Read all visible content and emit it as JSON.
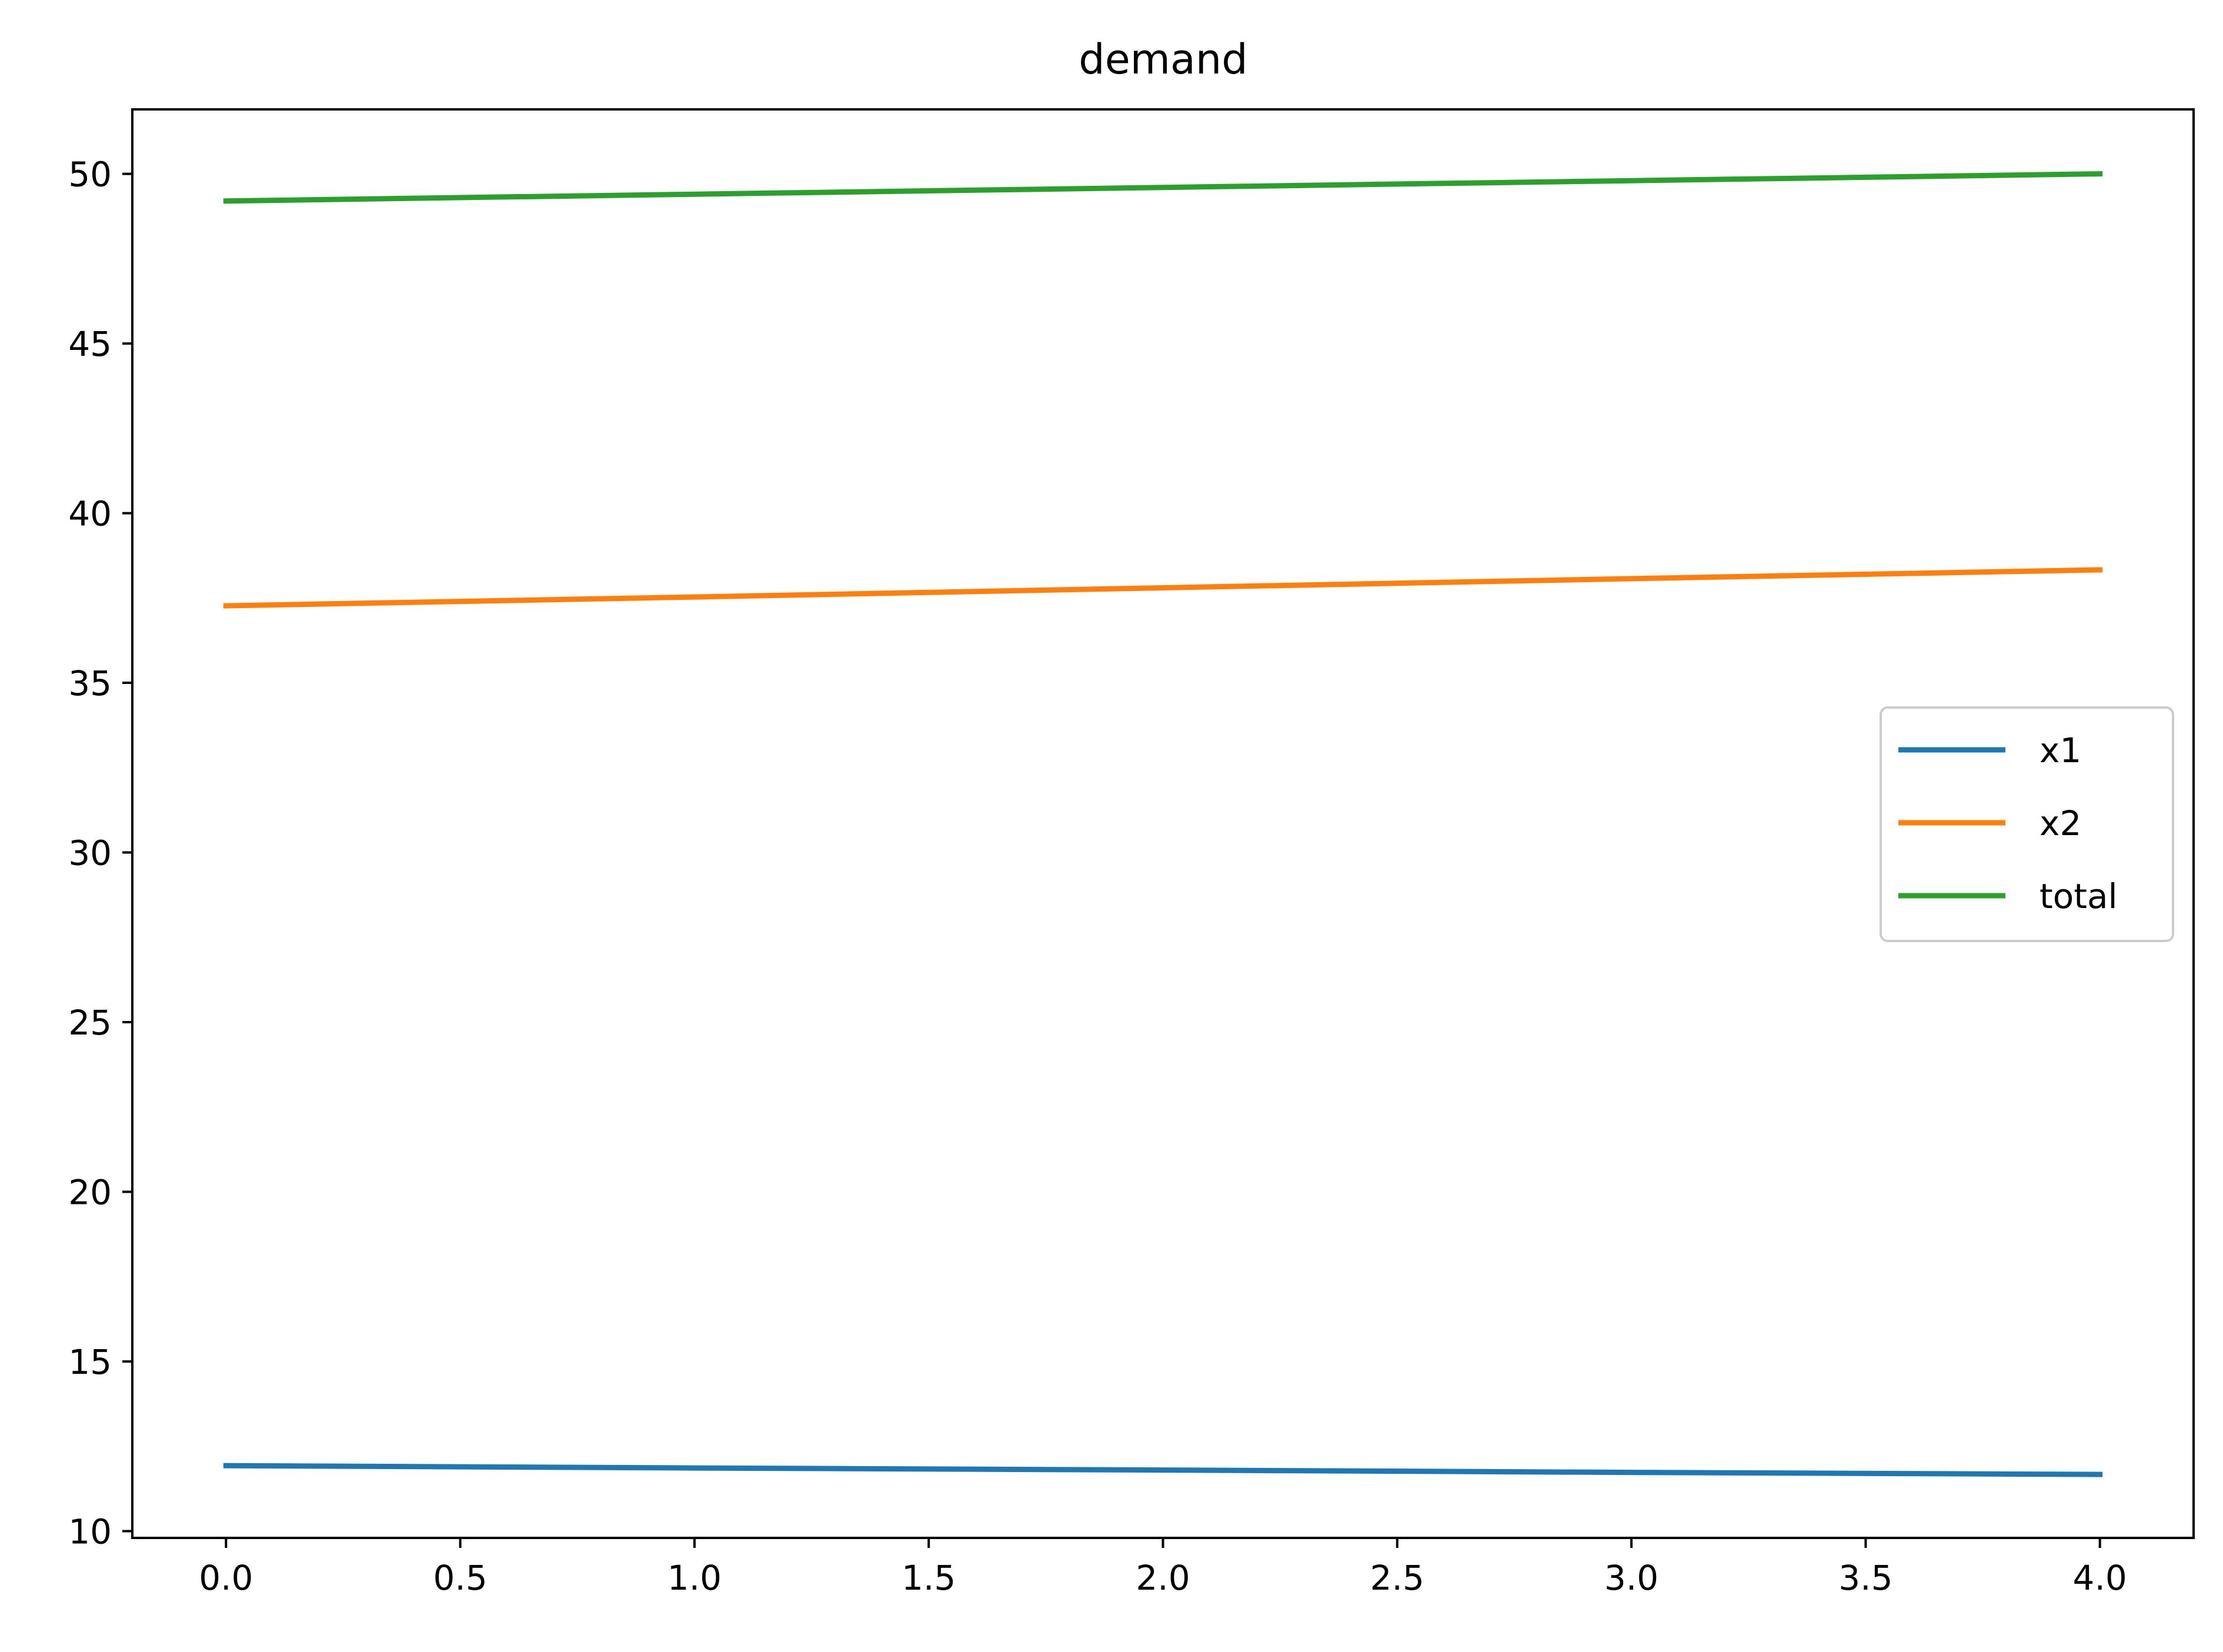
{
  "chart_data": {
    "type": "line",
    "title": "demand",
    "xlabel": "",
    "ylabel": "",
    "xlim": [
      -0.2,
      4.2
    ],
    "ylim": [
      9.8,
      51.9
    ],
    "x_ticks": [
      0.0,
      0.5,
      1.0,
      1.5,
      2.0,
      2.5,
      3.0,
      3.5,
      4.0
    ],
    "x_tick_labels": [
      "0.0",
      "0.5",
      "1.0",
      "1.5",
      "2.0",
      "2.5",
      "3.0",
      "3.5",
      "4.0"
    ],
    "y_ticks": [
      10,
      15,
      20,
      25,
      30,
      35,
      40,
      45,
      50
    ],
    "y_tick_labels": [
      "10",
      "15",
      "20",
      "25",
      "30",
      "35",
      "40",
      "45",
      "50"
    ],
    "grid": false,
    "legend_position": "center-right",
    "x": [
      0,
      1,
      2,
      3,
      4
    ],
    "series": [
      {
        "name": "x1",
        "color": "#1f77b4",
        "values": [
          11.93,
          11.86,
          11.8,
          11.73,
          11.67
        ]
      },
      {
        "name": "x2",
        "color": "#ff7f0e",
        "values": [
          37.27,
          37.53,
          37.8,
          38.07,
          38.33
        ]
      },
      {
        "name": "total",
        "color": "#2ca02c",
        "values": [
          49.2,
          49.4,
          49.6,
          49.8,
          50.0
        ]
      }
    ]
  }
}
